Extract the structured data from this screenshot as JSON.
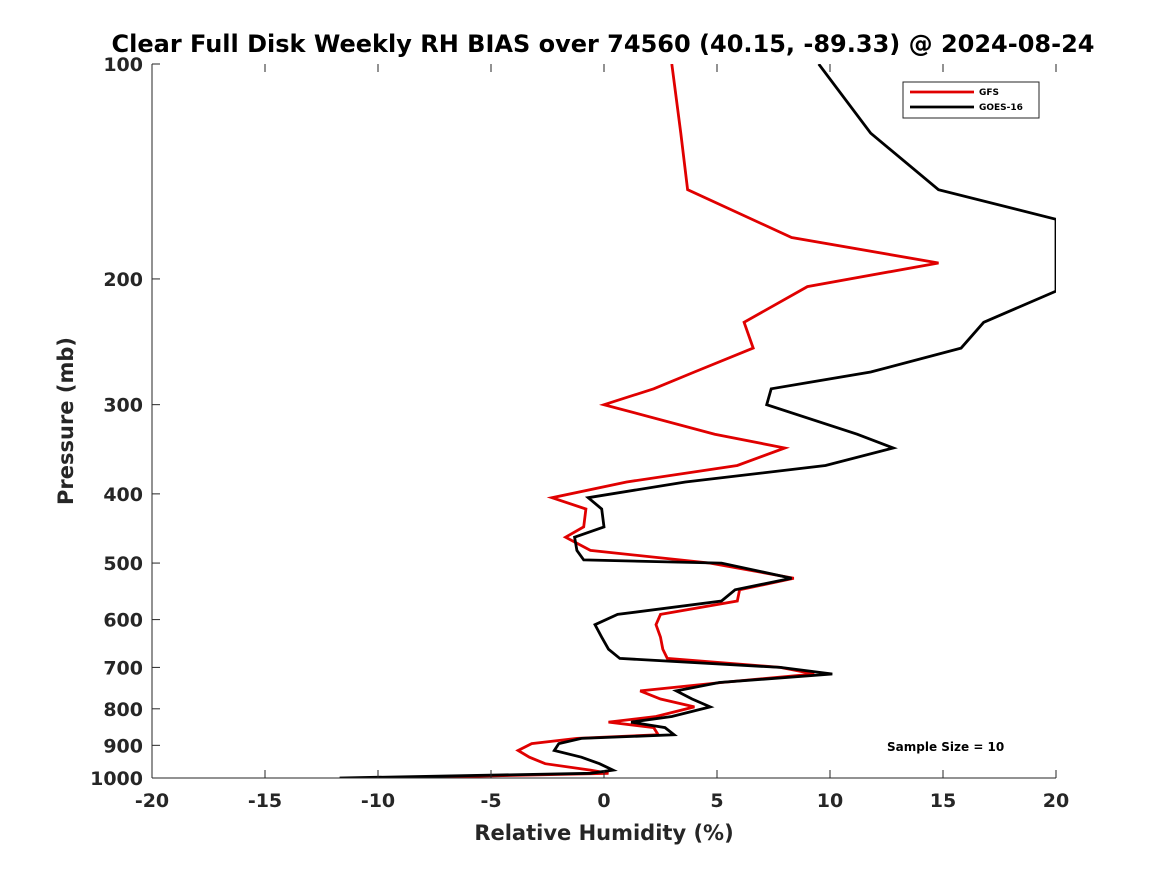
{
  "chart_data": {
    "type": "line",
    "title": "Clear Full Disk Weekly RH BIAS over 74560 (40.15, -89.33) @ 2024-08-24",
    "xlabel": "Relative Humidity (%)",
    "ylabel": "Pressure (mb)",
    "xlim": [
      -20,
      20
    ],
    "ylim": [
      1000,
      100
    ],
    "y_scale": "log",
    "y_reversed": true,
    "xticks": [
      -20,
      -15,
      -10,
      -5,
      0,
      5,
      10,
      15,
      20
    ],
    "yticks": [
      100,
      200,
      300,
      400,
      500,
      600,
      700,
      800,
      900,
      1000
    ],
    "grid": false,
    "legend_position": "top-right",
    "annotation": "Sample Size = 10",
    "series": [
      {
        "name": "GFS",
        "color": "#e00000",
        "points": [
          [
            3.0,
            100
          ],
          [
            3.4,
            125
          ],
          [
            3.7,
            150
          ],
          [
            8.3,
            175
          ],
          [
            14.8,
            190
          ],
          [
            9.0,
            205
          ],
          [
            6.2,
            230
          ],
          [
            6.6,
            250
          ],
          [
            4.0,
            270
          ],
          [
            2.2,
            285
          ],
          [
            0.0,
            300
          ],
          [
            4.9,
            330
          ],
          [
            8.0,
            345
          ],
          [
            5.9,
            365
          ],
          [
            1.0,
            385
          ],
          [
            -2.3,
            405
          ],
          [
            -0.8,
            420
          ],
          [
            -0.9,
            445
          ],
          [
            -1.7,
            460
          ],
          [
            -0.6,
            480
          ],
          [
            4.7,
            500
          ],
          [
            8.4,
            525
          ],
          [
            6.0,
            545
          ],
          [
            5.9,
            565
          ],
          [
            2.5,
            590
          ],
          [
            2.3,
            610
          ],
          [
            2.5,
            635
          ],
          [
            2.6,
            660
          ],
          [
            2.8,
            680
          ],
          [
            7.8,
            700
          ],
          [
            9.3,
            715
          ],
          [
            5.2,
            735
          ],
          [
            1.6,
            755
          ],
          [
            2.5,
            775
          ],
          [
            4.0,
            795
          ],
          [
            2.3,
            820
          ],
          [
            0.2,
            835
          ],
          [
            2.2,
            850
          ],
          [
            2.4,
            870
          ],
          [
            -1.2,
            880
          ],
          [
            -3.2,
            895
          ],
          [
            -3.8,
            915
          ],
          [
            -3.3,
            935
          ],
          [
            -2.6,
            955
          ],
          [
            -0.6,
            975
          ],
          [
            0.2,
            985
          ],
          [
            -9.5,
            1000
          ]
        ]
      },
      {
        "name": "GOES-16",
        "color": "#000000",
        "points": [
          [
            9.5,
            100
          ],
          [
            11.8,
            125
          ],
          [
            14.8,
            150
          ],
          [
            20.0,
            165
          ],
          [
            20.0,
            208
          ],
          [
            16.8,
            230
          ],
          [
            15.8,
            250
          ],
          [
            11.8,
            270
          ],
          [
            7.4,
            285
          ],
          [
            7.2,
            300
          ],
          [
            11.2,
            330
          ],
          [
            12.8,
            345
          ],
          [
            9.8,
            365
          ],
          [
            3.6,
            385
          ],
          [
            -0.7,
            405
          ],
          [
            -0.1,
            420
          ],
          [
            0.0,
            445
          ],
          [
            -1.3,
            460
          ],
          [
            -1.2,
            480
          ],
          [
            -0.9,
            495
          ],
          [
            5.2,
            500
          ],
          [
            8.3,
            525
          ],
          [
            5.8,
            545
          ],
          [
            5.2,
            565
          ],
          [
            0.6,
            590
          ],
          [
            -0.4,
            610
          ],
          [
            -0.1,
            635
          ],
          [
            0.2,
            660
          ],
          [
            0.7,
            680
          ],
          [
            7.8,
            700
          ],
          [
            10.1,
            715
          ],
          [
            5.1,
            735
          ],
          [
            3.2,
            755
          ],
          [
            3.9,
            775
          ],
          [
            4.7,
            795
          ],
          [
            3.0,
            820
          ],
          [
            1.2,
            835
          ],
          [
            2.7,
            850
          ],
          [
            3.1,
            870
          ],
          [
            -1.0,
            880
          ],
          [
            -2.0,
            895
          ],
          [
            -2.2,
            915
          ],
          [
            -1.0,
            935
          ],
          [
            -0.2,
            955
          ],
          [
            0.4,
            975
          ],
          [
            -0.6,
            985
          ],
          [
            -11.7,
            1000
          ]
        ]
      }
    ]
  }
}
